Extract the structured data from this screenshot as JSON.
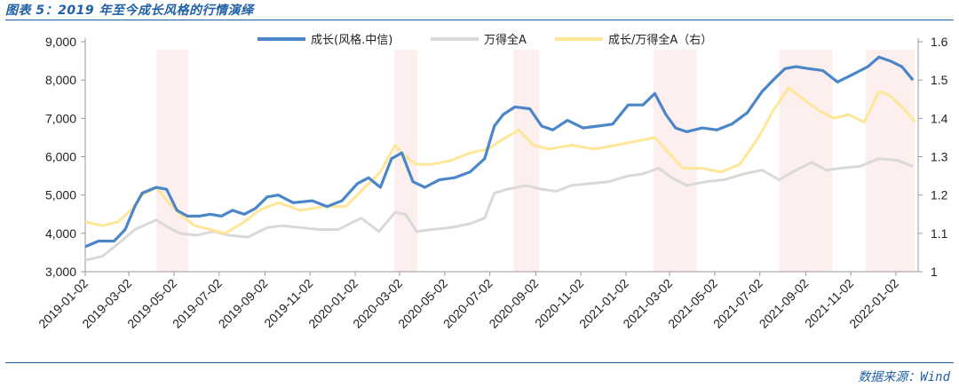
{
  "header": {
    "title": "图表 5：2019 年至今成长风格的行情演绎",
    "source": "数据来源：Wind"
  },
  "chart_data": {
    "type": "line",
    "title": "图表 5：2019 年至今成长风格的行情演绎",
    "x_ticks": [
      "2019-01-02",
      "2019-03-02",
      "2019-05-02",
      "2019-07-02",
      "2019-09-02",
      "2019-11-02",
      "2020-01-02",
      "2020-03-02",
      "2020-05-02",
      "2020-07-02",
      "2020-09-02",
      "2020-11-02",
      "2021-01-02",
      "2021-03-02",
      "2021-05-02",
      "2021-07-02",
      "2021-09-02",
      "2021-11-02",
      "2022-01-02"
    ],
    "y_left": {
      "min": 3000,
      "max": 9000,
      "ticks": [
        "3,000",
        "4,000",
        "5,000",
        "6,000",
        "7,000",
        "8,000",
        "9,000"
      ]
    },
    "y_right": {
      "min": 1,
      "max": 1.6,
      "ticks": [
        "1",
        "1.1",
        "1.2",
        "1.3",
        "1.4",
        "1.5",
        "1.6"
      ]
    },
    "legend_position": "top-center",
    "shaded_periods": [
      [
        "2019-04-08",
        "2019-05-21"
      ],
      [
        "2020-02-24",
        "2020-03-26"
      ],
      [
        "2020-08-03",
        "2020-09-07"
      ],
      [
        "2021-02-08",
        "2021-04-08"
      ],
      [
        "2021-07-28",
        "2021-10-08"
      ],
      [
        "2021-11-22",
        "2022-01-28"
      ]
    ],
    "series": [
      {
        "name": "成长(风格.中信)",
        "axis": "left",
        "color": "#4a86c8",
        "points": [
          [
            "2019-01-02",
            3650
          ],
          [
            "2019-01-20",
            3800
          ],
          [
            "2019-02-10",
            3800
          ],
          [
            "2019-02-25",
            4100
          ],
          [
            "2019-03-10",
            4700
          ],
          [
            "2019-03-20",
            5050
          ],
          [
            "2019-04-08",
            5200
          ],
          [
            "2019-04-22",
            5150
          ],
          [
            "2019-05-06",
            4600
          ],
          [
            "2019-05-20",
            4450
          ],
          [
            "2019-06-05",
            4450
          ],
          [
            "2019-06-20",
            4500
          ],
          [
            "2019-07-05",
            4450
          ],
          [
            "2019-07-20",
            4600
          ],
          [
            "2019-08-05",
            4500
          ],
          [
            "2019-08-20",
            4650
          ],
          [
            "2019-09-05",
            4950
          ],
          [
            "2019-09-20",
            5000
          ],
          [
            "2019-10-10",
            4800
          ],
          [
            "2019-11-05",
            4850
          ],
          [
            "2019-11-25",
            4700
          ],
          [
            "2019-12-15",
            4850
          ],
          [
            "2020-01-05",
            5300
          ],
          [
            "2020-01-20",
            5450
          ],
          [
            "2020-02-05",
            5200
          ],
          [
            "2020-02-20",
            5950
          ],
          [
            "2020-03-05",
            6100
          ],
          [
            "2020-03-20",
            5350
          ],
          [
            "2020-04-05",
            5200
          ],
          [
            "2020-04-25",
            5400
          ],
          [
            "2020-05-15",
            5450
          ],
          [
            "2020-06-05",
            5600
          ],
          [
            "2020-06-25",
            5950
          ],
          [
            "2020-07-08",
            6800
          ],
          [
            "2020-07-20",
            7100
          ],
          [
            "2020-08-05",
            7300
          ],
          [
            "2020-08-25",
            7250
          ],
          [
            "2020-09-10",
            6800
          ],
          [
            "2020-09-25",
            6700
          ],
          [
            "2020-10-15",
            6950
          ],
          [
            "2020-11-05",
            6750
          ],
          [
            "2020-11-25",
            6800
          ],
          [
            "2020-12-15",
            6850
          ],
          [
            "2021-01-05",
            7350
          ],
          [
            "2021-01-25",
            7350
          ],
          [
            "2021-02-10",
            7650
          ],
          [
            "2021-02-25",
            7100
          ],
          [
            "2021-03-10",
            6750
          ],
          [
            "2021-03-25",
            6650
          ],
          [
            "2021-04-15",
            6750
          ],
          [
            "2021-05-05",
            6700
          ],
          [
            "2021-05-25",
            6850
          ],
          [
            "2021-06-15",
            7150
          ],
          [
            "2021-07-05",
            7700
          ],
          [
            "2021-07-20",
            8000
          ],
          [
            "2021-08-05",
            8300
          ],
          [
            "2021-08-20",
            8350
          ],
          [
            "2021-09-05",
            8300
          ],
          [
            "2021-09-25",
            8250
          ],
          [
            "2021-10-15",
            7950
          ],
          [
            "2021-11-05",
            8150
          ],
          [
            "2021-11-25",
            8350
          ],
          [
            "2021-12-10",
            8600
          ],
          [
            "2021-12-25",
            8500
          ],
          [
            "2022-01-10",
            8350
          ],
          [
            "2022-01-25",
            8000
          ]
        ]
      },
      {
        "name": "万得全A",
        "axis": "left",
        "color": "#d9d9d9",
        "points": [
          [
            "2019-01-02",
            3300
          ],
          [
            "2019-01-25",
            3400
          ],
          [
            "2019-02-20",
            3800
          ],
          [
            "2019-03-10",
            4100
          ],
          [
            "2019-04-08",
            4350
          ],
          [
            "2019-04-25",
            4150
          ],
          [
            "2019-05-10",
            4000
          ],
          [
            "2019-06-01",
            3950
          ],
          [
            "2019-06-25",
            4050
          ],
          [
            "2019-07-15",
            3950
          ],
          [
            "2019-08-10",
            3900
          ],
          [
            "2019-09-05",
            4150
          ],
          [
            "2019-09-25",
            4200
          ],
          [
            "2019-10-20",
            4150
          ],
          [
            "2019-11-15",
            4100
          ],
          [
            "2019-12-10",
            4100
          ],
          [
            "2020-01-10",
            4400
          ],
          [
            "2020-02-03",
            4050
          ],
          [
            "2020-02-25",
            4550
          ],
          [
            "2020-03-10",
            4500
          ],
          [
            "2020-03-25",
            4050
          ],
          [
            "2020-04-15",
            4100
          ],
          [
            "2020-05-10",
            4150
          ],
          [
            "2020-06-05",
            4250
          ],
          [
            "2020-06-25",
            4400
          ],
          [
            "2020-07-08",
            5050
          ],
          [
            "2020-07-25",
            5150
          ],
          [
            "2020-08-20",
            5250
          ],
          [
            "2020-09-10",
            5150
          ],
          [
            "2020-09-30",
            5100
          ],
          [
            "2020-10-20",
            5250
          ],
          [
            "2020-11-15",
            5300
          ],
          [
            "2020-12-10",
            5350
          ],
          [
            "2021-01-05",
            5500
          ],
          [
            "2021-01-25",
            5550
          ],
          [
            "2021-02-15",
            5700
          ],
          [
            "2021-03-05",
            5450
          ],
          [
            "2021-03-25",
            5250
          ],
          [
            "2021-04-20",
            5350
          ],
          [
            "2021-05-15",
            5400
          ],
          [
            "2021-06-10",
            5550
          ],
          [
            "2021-07-05",
            5650
          ],
          [
            "2021-07-28",
            5400
          ],
          [
            "2021-08-20",
            5650
          ],
          [
            "2021-09-10",
            5850
          ],
          [
            "2021-09-30",
            5650
          ],
          [
            "2021-10-20",
            5700
          ],
          [
            "2021-11-15",
            5750
          ],
          [
            "2021-12-10",
            5950
          ],
          [
            "2022-01-05",
            5900
          ],
          [
            "2022-01-25",
            5750
          ]
        ]
      },
      {
        "name": "成长/万得全A（右）",
        "axis": "right",
        "color": "#ffe699",
        "points": [
          [
            "2019-01-02",
            1.13
          ],
          [
            "2019-01-25",
            1.12
          ],
          [
            "2019-02-15",
            1.13
          ],
          [
            "2019-03-05",
            1.16
          ],
          [
            "2019-03-20",
            1.2
          ],
          [
            "2019-04-08",
            1.22
          ],
          [
            "2019-04-25",
            1.18
          ],
          [
            "2019-05-10",
            1.15
          ],
          [
            "2019-05-30",
            1.12
          ],
          [
            "2019-06-20",
            1.11
          ],
          [
            "2019-07-10",
            1.1
          ],
          [
            "2019-08-05",
            1.13
          ],
          [
            "2019-08-25",
            1.16
          ],
          [
            "2019-09-20",
            1.18
          ],
          [
            "2019-10-20",
            1.16
          ],
          [
            "2019-11-20",
            1.17
          ],
          [
            "2019-12-20",
            1.17
          ],
          [
            "2020-01-15",
            1.22
          ],
          [
            "2020-02-05",
            1.26
          ],
          [
            "2020-02-25",
            1.33
          ],
          [
            "2020-03-10",
            1.3
          ],
          [
            "2020-03-25",
            1.28
          ],
          [
            "2020-04-15",
            1.28
          ],
          [
            "2020-05-10",
            1.29
          ],
          [
            "2020-06-05",
            1.31
          ],
          [
            "2020-06-30",
            1.32
          ],
          [
            "2020-07-15",
            1.34
          ],
          [
            "2020-08-10",
            1.37
          ],
          [
            "2020-08-30",
            1.33
          ],
          [
            "2020-09-20",
            1.32
          ],
          [
            "2020-10-20",
            1.33
          ],
          [
            "2020-11-20",
            1.32
          ],
          [
            "2020-12-20",
            1.33
          ],
          [
            "2021-01-15",
            1.34
          ],
          [
            "2021-02-10",
            1.35
          ],
          [
            "2021-03-01",
            1.31
          ],
          [
            "2021-03-20",
            1.27
          ],
          [
            "2021-04-15",
            1.27
          ],
          [
            "2021-05-10",
            1.26
          ],
          [
            "2021-06-05",
            1.28
          ],
          [
            "2021-06-30",
            1.35
          ],
          [
            "2021-07-20",
            1.42
          ],
          [
            "2021-08-10",
            1.48
          ],
          [
            "2021-08-30",
            1.45
          ],
          [
            "2021-09-20",
            1.42
          ],
          [
            "2021-10-10",
            1.4
          ],
          [
            "2021-10-30",
            1.41
          ],
          [
            "2021-11-20",
            1.39
          ],
          [
            "2021-12-10",
            1.47
          ],
          [
            "2021-12-25",
            1.46
          ],
          [
            "2022-01-10",
            1.43
          ],
          [
            "2022-01-28",
            1.39
          ]
        ]
      }
    ]
  }
}
